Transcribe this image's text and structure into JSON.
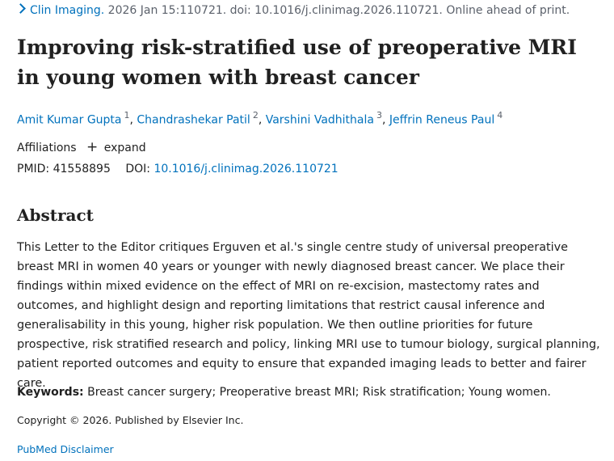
{
  "citation": {
    "journal": "Clin Imaging.",
    "details": " 2026 Jan 15:110721. doi: 10.1016/j.clinimag.2026.110721. Online ahead of print."
  },
  "title": "Improving risk-stratified use of preoperative MRI in young women with breast cancer",
  "authors": [
    {
      "name": "Amit Kumar Gupta",
      "aff": "1"
    },
    {
      "name": "Chandrashekar Patil",
      "aff": "2"
    },
    {
      "name": "Varshini Vadhithala",
      "aff": "3"
    },
    {
      "name": "Jeffrin Reneus Paul",
      "aff": "4"
    }
  ],
  "affiliations": {
    "label": "Affiliations",
    "expand_label": "expand"
  },
  "identifiers": {
    "pmid_label": "PMID:",
    "pmid": "41558895",
    "doi_label": "DOI:",
    "doi": "10.1016/j.clinimag.2026.110721"
  },
  "abstract": {
    "heading": "Abstract",
    "text": "This Letter to the Editor critiques Erguven et al.'s single centre study of universal preoperative breast MRI in women 40 years or younger with newly diagnosed breast cancer. We place their findings within mixed evidence on the effect of MRI on re-excision, mastectomy rates and outcomes, and highlight design and reporting limitations that restrict causal inference and generalisability in this young, higher risk population. We then outline priorities for future prospective, risk stratified research and policy, linking MRI use to tumour biology, surgical planning, patient reported outcomes and equity to ensure that expanded imaging leads to better and fairer care."
  },
  "keywords": {
    "label": "Keywords:",
    "text": "Breast cancer surgery; Preoperative breast MRI; Risk stratification; Young women."
  },
  "copyright": "Copyright © 2026. Published by Elsevier Inc.",
  "disclaimer": "PubMed Disclaimer",
  "colors": {
    "link": "#0071bc",
    "text": "#212121",
    "muted": "#5b616b"
  }
}
